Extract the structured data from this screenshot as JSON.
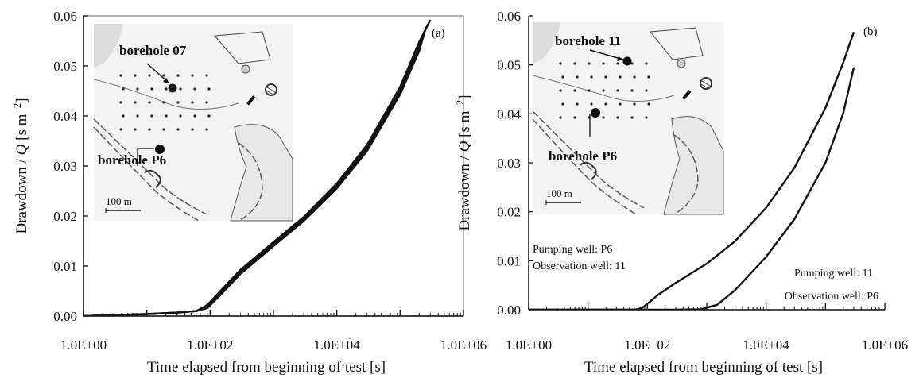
{
  "chart_data": [
    {
      "type": "line",
      "panel_label": "(a)",
      "xlabel": "Time elapsed from beginning of test [s]",
      "ylabel_parts": [
        "Drawdown / ",
        "Q",
        " [s m",
        "−2",
        "]"
      ],
      "x_scale": "log",
      "xlim": [
        1,
        1000000
      ],
      "ylim": [
        0,
        0.06
      ],
      "x_ticks": [
        "1.0E+00",
        "1.0E+02",
        "1.0E+04",
        "1.0E+06"
      ],
      "y_ticks": [
        "0.00",
        "0.01",
        "0.02",
        "0.03",
        "0.04",
        "0.05",
        "0.06"
      ],
      "inset": {
        "label_top": "borehole 07",
        "label_bottom": "borehole P6",
        "scale_label": "100 m"
      },
      "annotations": [],
      "series": [
        {
          "points": [
            [
              1,
              0
            ],
            [
              3,
              0.0002
            ],
            [
              10,
              0.0004
            ],
            [
              30,
              0.0007
            ],
            [
              60,
              0.001
            ],
            [
              90,
              0.0022
            ],
            [
              150,
              0.0052
            ],
            [
              300,
              0.0092
            ],
            [
              1000,
              0.0148
            ],
            [
              3000,
              0.0198
            ],
            [
              10000,
              0.0265
            ],
            [
              30000,
              0.0342
            ],
            [
              100000,
              0.0458
            ],
            [
              200000,
              0.0548
            ],
            [
              300000,
              0.0592
            ]
          ]
        },
        {
          "points": [
            [
              1,
              0
            ],
            [
              3,
              0.0002
            ],
            [
              10,
              0.0004
            ],
            [
              30,
              0.0007
            ],
            [
              60,
              0.001
            ],
            [
              90,
              0.0019
            ],
            [
              150,
              0.0048
            ],
            [
              300,
              0.0088
            ],
            [
              1000,
              0.0144
            ],
            [
              3000,
              0.0194
            ],
            [
              10000,
              0.026
            ],
            [
              30000,
              0.0336
            ],
            [
              100000,
              0.045
            ],
            [
              200000,
              0.0538
            ],
            [
              260000,
              0.0578
            ]
          ]
        },
        {
          "points": [
            [
              1,
              0
            ],
            [
              3,
              0.0002
            ],
            [
              10,
              0.0004
            ],
            [
              30,
              0.0007
            ],
            [
              60,
              0.001
            ],
            [
              90,
              0.0016
            ],
            [
              150,
              0.0044
            ],
            [
              300,
              0.0084
            ],
            [
              1000,
              0.014
            ],
            [
              3000,
              0.019
            ],
            [
              10000,
              0.0255
            ],
            [
              30000,
              0.033
            ],
            [
              100000,
              0.0443
            ],
            [
              200000,
              0.053
            ],
            [
              240000,
              0.0565
            ]
          ]
        }
      ]
    },
    {
      "type": "line",
      "panel_label": "(b)",
      "xlabel": "Time elapsed from beginning of test [s]",
      "ylabel_parts": [
        "Drawdown / ",
        "Q",
        " [s m",
        "−2",
        "]"
      ],
      "x_scale": "log",
      "xlim": [
        1,
        1000000
      ],
      "ylim": [
        0,
        0.06
      ],
      "x_ticks": [
        "1.0E+00",
        "1.0E+02",
        "1.0E+04",
        "1.0E+06"
      ],
      "y_ticks": [
        "0.00",
        "0.01",
        "0.02",
        "0.03",
        "0.04",
        "0.05",
        "0.06"
      ],
      "inset": {
        "label_top": "borehole 11",
        "label_bottom": "borehole P6",
        "scale_label": "100 m"
      },
      "annotations": [
        {
          "text": "Pumping well: P6",
          "ref": "left"
        },
        {
          "text": "Observation well: 11",
          "ref": "left"
        },
        {
          "text": "Pumping well: 11",
          "ref": "right"
        },
        {
          "text": "Observation well: P6",
          "ref": "right"
        }
      ],
      "series": [
        {
          "points": [
            [
              1,
              0
            ],
            [
              30,
              0
            ],
            [
              60,
              0
            ],
            [
              80,
              0.0003
            ],
            [
              100,
              0.0012
            ],
            [
              150,
              0.003
            ],
            [
              300,
              0.0055
            ],
            [
              1000,
              0.0094
            ],
            [
              3000,
              0.014
            ],
            [
              10000,
              0.0208
            ],
            [
              30000,
              0.029
            ],
            [
              100000,
              0.0412
            ],
            [
              200000,
              0.0505
            ],
            [
              300000,
              0.0567
            ]
          ]
        },
        {
          "points": [
            [
              1,
              0
            ],
            [
              300,
              0
            ],
            [
              800,
              0.0001
            ],
            [
              1500,
              0.001
            ],
            [
              3000,
              0.004
            ],
            [
              10000,
              0.0108
            ],
            [
              30000,
              0.0185
            ],
            [
              100000,
              0.03
            ],
            [
              200000,
              0.0402
            ],
            [
              300000,
              0.0495
            ]
          ]
        }
      ]
    }
  ]
}
